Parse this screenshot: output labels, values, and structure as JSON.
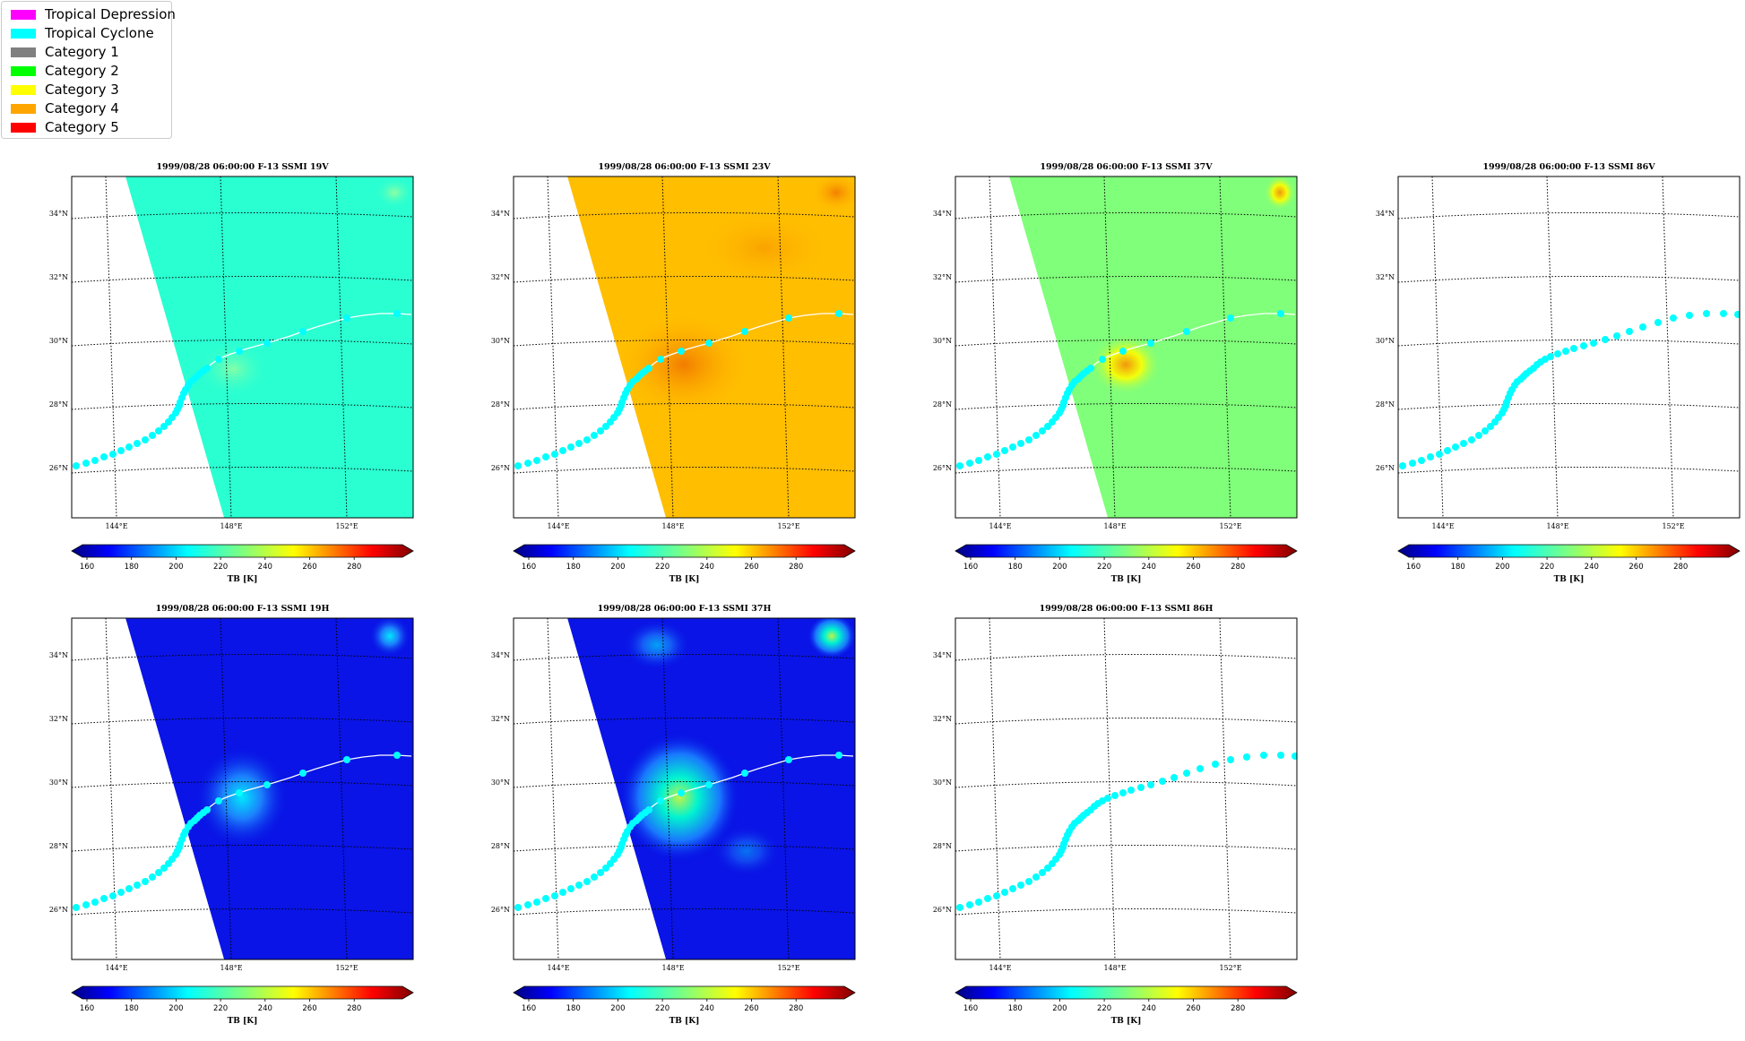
{
  "legend": {
    "items": [
      {
        "label": "Tropical Depression",
        "color": "#ff00ff"
      },
      {
        "label": "Tropical Cyclone",
        "color": "#00ffff"
      },
      {
        "label": "Category 1",
        "color": "#808080"
      },
      {
        "label": "Category 2",
        "color": "#00ff00"
      },
      {
        "label": "Category 3",
        "color": "#ffff00"
      },
      {
        "label": "Category 4",
        "color": "#ffa500"
      },
      {
        "label": "Category 5",
        "color": "#ff0000"
      }
    ]
  },
  "map": {
    "lat_labels": [
      "34°N",
      "32°N",
      "30°N",
      "28°N",
      "26°N"
    ],
    "lon_labels": [
      "144°E",
      "148°E",
      "152°E"
    ],
    "track_color": "#00ffff"
  },
  "colorbar": {
    "ticks": [
      "160",
      "180",
      "200",
      "220",
      "240",
      "260",
      "280"
    ],
    "label": "TB [K]"
  },
  "panels": [
    {
      "title": "1999/08/28 06:00:00  F-13 SSMI 19V",
      "fill": "cyan",
      "has_data": true
    },
    {
      "title": "1999/08/28 06:00:00  F-13 SSMI 23V",
      "fill": "orange",
      "has_data": true
    },
    {
      "title": "1999/08/28 06:00:00  F-13 SSMI 37V",
      "fill": "green",
      "has_data": true
    },
    {
      "title": "1999/08/28 06:00:00  F-13 SSMI 86V",
      "fill": "none",
      "has_data": false
    },
    {
      "title": "1999/08/28 06:00:00  F-13 SSMI 19H",
      "fill": "blue",
      "has_data": true
    },
    {
      "title": "1999/08/28 06:00:00  F-13 SSMI 37H",
      "fill": "blue2",
      "has_data": true
    },
    {
      "title": "1999/08/28 06:00:00  F-13 SSMI 86H",
      "fill": "none",
      "has_data": false
    }
  ]
}
